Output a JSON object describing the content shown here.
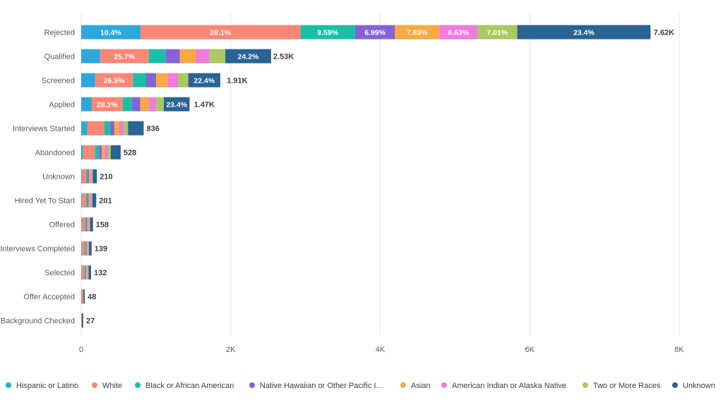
{
  "chart_data": {
    "type": "bar",
    "orientation": "horizontal",
    "stacked": true,
    "categories": [
      "Rejected",
      "Qualified",
      "Screened",
      "Applied",
      "Interviews Started",
      "Abandoned",
      "Unknown",
      "Hired Yet To Start",
      "Offered",
      "Interviews Completed",
      "Selected",
      "Offer Accepted",
      "Background Checked"
    ],
    "totals": [
      7620,
      2530,
      1910,
      1470,
      836,
      528,
      210,
      201,
      158,
      139,
      132,
      48,
      27
    ],
    "total_labels": [
      "7.62K",
      "2.53K",
      "1.91K",
      "1.47K",
      "836",
      "528",
      "210",
      "201",
      "158",
      "139",
      "132",
      "48",
      "27"
    ],
    "series": [
      {
        "name": "Hispanic or Latino",
        "color": "#2ea8dc",
        "percents": [
          10.4,
          10.0,
          9.8,
          9.6,
          10.0,
          5.0,
          4.0,
          5.0,
          5.0,
          5.0,
          5.0,
          2.0,
          0.0
        ],
        "labels": [
          "10.4%",
          "",
          "",
          "",
          "",
          "",
          "",
          "",
          "",
          "",
          "",
          "",
          ""
        ]
      },
      {
        "name": "White",
        "color": "#fa8675",
        "percents": [
          28.1,
          25.7,
          26.5,
          28.1,
          27.0,
          30.0,
          28.0,
          28.0,
          30.0,
          30.0,
          30.0,
          60.0,
          30.0
        ],
        "labels": [
          "28.1%",
          "25.7%",
          "26.5%",
          "28.1%",
          "",
          "",
          "",
          "",
          "",
          "",
          "",
          "",
          ""
        ]
      },
      {
        "name": "Black or African American",
        "color": "#1bbfa7",
        "percents": [
          9.59,
          9.0,
          9.2,
          8.5,
          9.0,
          10.0,
          10.0,
          10.0,
          10.0,
          10.0,
          10.0,
          0.0,
          0.0
        ],
        "labels": [
          "9.59%",
          "",
          "",
          "",
          "",
          "",
          "",
          "",
          "",
          "",
          "",
          "",
          ""
        ]
      },
      {
        "name": "Native Hawaiian or Other Pacific I...",
        "color": "#8662d9",
        "percents": [
          6.99,
          7.5,
          7.0,
          7.5,
          7.0,
          7.0,
          8.0,
          7.0,
          6.0,
          6.0,
          6.0,
          0.0,
          0.0
        ],
        "labels": [
          "6.99%",
          "",
          "",
          "",
          "",
          "",
          "",
          "",
          "",
          "",
          "",
          "",
          ""
        ]
      },
      {
        "name": "Asian",
        "color": "#f8a941",
        "percents": [
          7.83,
          8.5,
          8.0,
          8.0,
          8.0,
          8.0,
          8.0,
          8.0,
          8.0,
          8.0,
          8.0,
          0.0,
          0.0
        ],
        "labels": [
          "7.83%",
          "",
          "",
          "",
          "",
          "",
          "",
          "",
          "",
          "",
          "",
          "",
          ""
        ]
      },
      {
        "name": "American Indian or Alaska Native",
        "color": "#f07ae0",
        "percents": [
          6.63,
          7.0,
          7.0,
          6.5,
          7.0,
          8.0,
          8.0,
          8.0,
          8.0,
          8.0,
          8.0,
          0.0,
          0.0
        ],
        "labels": [
          "6.63%",
          "",
          "",
          "",
          "",
          "",
          "",
          "",
          "",
          "",
          "",
          "",
          ""
        ]
      },
      {
        "name": "Two or More Races",
        "color": "#a9c961",
        "percents": [
          7.01,
          8.5,
          7.5,
          7.0,
          7.0,
          7.0,
          8.0,
          8.0,
          8.0,
          8.0,
          8.0,
          0.0,
          0.0
        ],
        "labels": [
          "7.01%",
          "",
          "",
          "",
          "",
          "",
          "",
          "",
          "",
          "",
          "",
          "",
          ""
        ]
      },
      {
        "name": "Unknown",
        "color": "#2a6394",
        "percents": [
          23.4,
          24.2,
          22.4,
          23.4,
          25.0,
          25.0,
          26.0,
          26.0,
          25.0,
          25.0,
          25.0,
          38.0,
          70.0
        ],
        "labels": [
          "23.4%",
          "24.2%",
          "22.4%",
          "23.4%",
          "",
          "",
          "",
          "",
          "",
          "",
          "",
          "",
          ""
        ]
      }
    ],
    "x_ticks": [
      0,
      2000,
      4000,
      6000,
      8000
    ],
    "x_tick_labels": [
      "0",
      "2K",
      "4K",
      "6K",
      "8K"
    ],
    "xlim": [
      0,
      8000
    ],
    "grid": true,
    "legend_position": "bottom"
  }
}
